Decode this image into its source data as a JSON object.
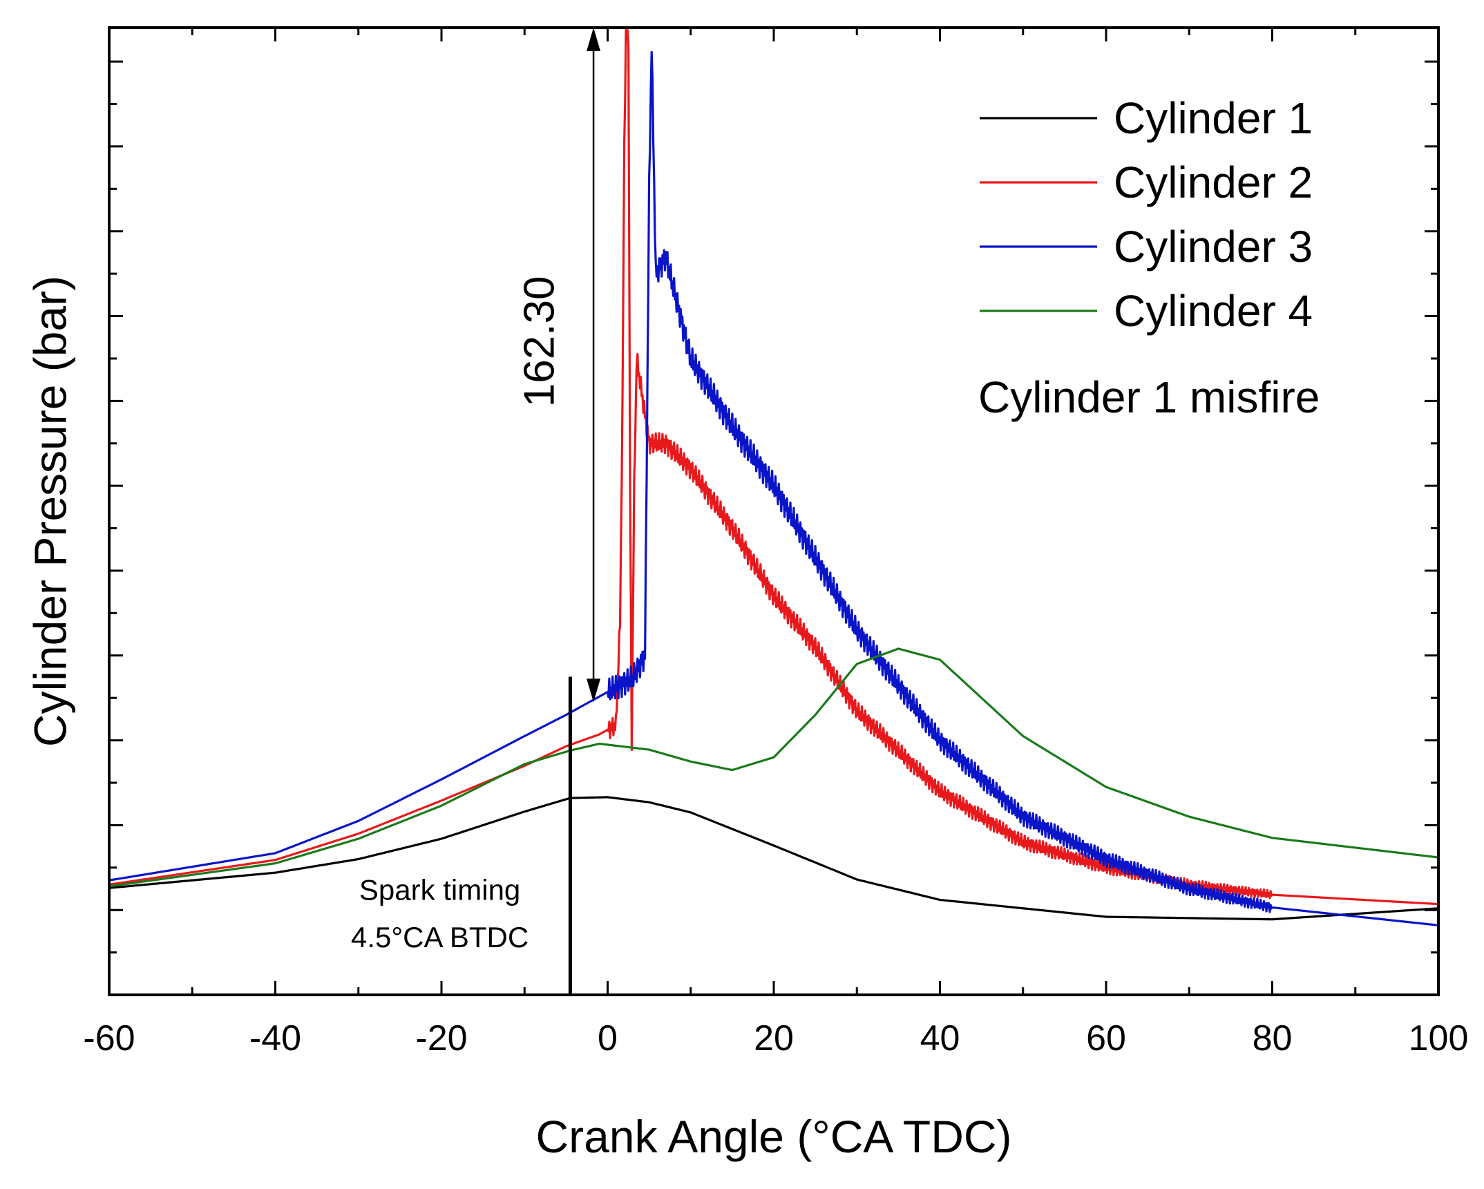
{
  "chart_data": {
    "type": "line",
    "title": "",
    "xlabel": "Crank Angle (°CA TDC)",
    "ylabel": "Cylinder Pressure (bar)",
    "xlim": [
      -60,
      100
    ],
    "x_ticks": [
      -60,
      -40,
      -20,
      0,
      20,
      40,
      60,
      80,
      100
    ],
    "x_tick_labels": [
      "-60",
      "-40",
      "-20",
      "0",
      "20",
      "40",
      "60",
      "80",
      "100"
    ],
    "ylim": [
      0,
      114
    ],
    "y_major_ticks": [
      10,
      20,
      30,
      40,
      50,
      60,
      70,
      80,
      90,
      100,
      110
    ],
    "y_tick_labels_shown": false,
    "grid": false,
    "legend_position": "top-right",
    "series": [
      {
        "name": "Cylinder 1",
        "color": "#000000",
        "noise": 0,
        "x": [
          -60,
          -40,
          -30,
          -20,
          -10,
          -4.5,
          0,
          5,
          10,
          20,
          30,
          40,
          60,
          80,
          100
        ],
        "y": [
          12.6,
          14.4,
          16.0,
          18.4,
          21.6,
          23.2,
          23.3,
          22.7,
          21.5,
          17.6,
          13.6,
          11.2,
          9.2,
          8.9,
          10.2
        ]
      },
      {
        "name": "Cylinder 2",
        "color": "#e8191c",
        "noise": 1.2,
        "x": [
          -60,
          -40,
          -30,
          -20,
          -10,
          -5,
          -1,
          1,
          1.5,
          1.8,
          2,
          2.2,
          2.5,
          2.7,
          2.9,
          3.2,
          3.5,
          5,
          7,
          10,
          15,
          20,
          25,
          30,
          40,
          50,
          60,
          70,
          80,
          100
        ],
        "y": [
          13.0,
          15.9,
          19.0,
          22.9,
          27.0,
          29.3,
          30.7,
          31.8,
          44.0,
          70.0,
          100.0,
          113.0,
          113.0,
          60.0,
          30.0,
          60.0,
          75.0,
          65.0,
          65.0,
          62.0,
          55.0,
          47.0,
          41.0,
          33.5,
          24.0,
          18.0,
          15.0,
          13.0,
          11.8,
          10.7
        ]
      },
      {
        "name": "Cylinder 3",
        "color": "#0a14c8",
        "noise": 1.5,
        "x": [
          -60,
          -40,
          -30,
          -20,
          -10,
          -5,
          0,
          3,
          4.5,
          5,
          5.3,
          5.8,
          7,
          10,
          15,
          20,
          30,
          40,
          50,
          60,
          70,
          80,
          100
        ],
        "y": [
          13.5,
          16.7,
          20.5,
          25.4,
          30.5,
          33.0,
          35.7,
          37.3,
          40.0,
          95.0,
          112.0,
          85.0,
          87.0,
          75.0,
          67.0,
          60.0,
          43.0,
          30.0,
          21.0,
          16.0,
          12.5,
          10.3,
          8.2
        ]
      },
      {
        "name": "Cylinder 4",
        "color": "#1a7a1a",
        "noise": 0,
        "x": [
          -60,
          -40,
          -30,
          -20,
          -10,
          -4.5,
          -1,
          5,
          10,
          15,
          20,
          25,
          30,
          35,
          40,
          50,
          60,
          70,
          80,
          100
        ],
        "y": [
          12.8,
          15.5,
          18.4,
          22.3,
          27.2,
          28.8,
          29.6,
          28.9,
          27.5,
          26.5,
          28.0,
          33.0,
          39.0,
          40.8,
          39.5,
          30.5,
          24.5,
          21.0,
          18.5,
          16.2
        ]
      }
    ],
    "annotations": {
      "spark_line_x": -4.5,
      "spark_label_line1": "Spark timing",
      "spark_label_line2": "4.5°CA BTDC",
      "peak_value_label": "162.30",
      "misfire_note": "Cylinder 1 misfire"
    }
  }
}
